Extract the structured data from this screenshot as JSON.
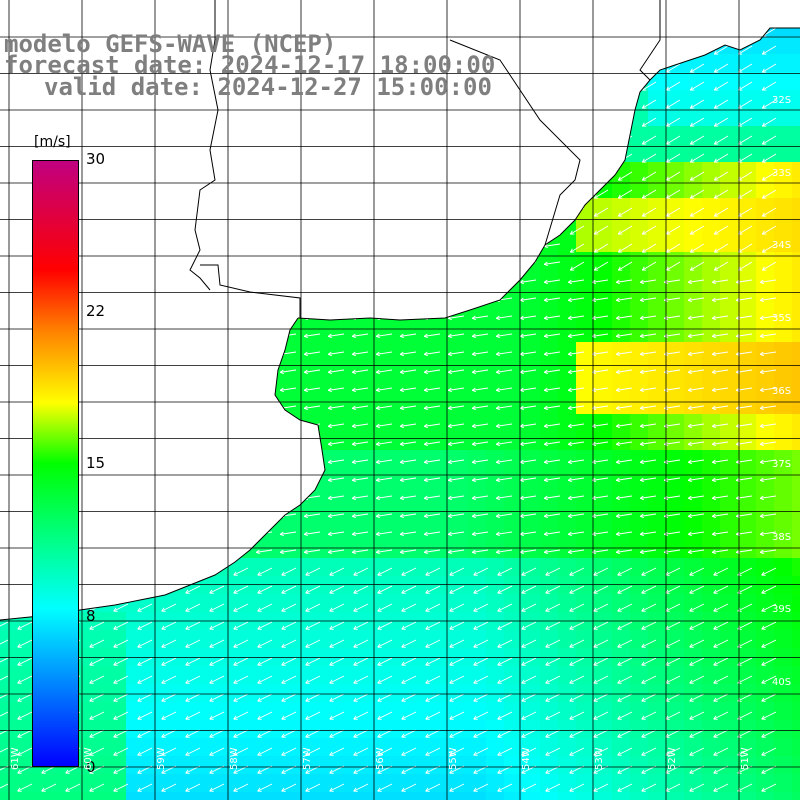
{
  "title": {
    "line1": "modelo GEFS-WAVE (NCEP)",
    "line2": "forecast date: 2024-12-17 18:00:00",
    "line3": "valid date: 2024-12-27 15:00:00"
  },
  "colorbar": {
    "unit": "[m/s]",
    "ticks": [
      "30",
      "22",
      "15",
      "8",
      "0"
    ],
    "tick_values": [
      30,
      22,
      15,
      8,
      0
    ],
    "colors": [
      "#0000ff",
      "#00ffff",
      "#00ff00",
      "#ffff00",
      "#ff8000",
      "#ff0000",
      "#c00080"
    ]
  },
  "lat_labels": [
    "32S",
    "33S",
    "34S",
    "35S",
    "36S",
    "37S",
    "38S",
    "39S",
    "40S"
  ],
  "lon_labels": [
    "61W",
    "60W",
    "59W",
    "58W",
    "57W",
    "56W",
    "55W",
    "54W",
    "53W",
    "52W",
    "51W"
  ],
  "colors": {
    "land": "#ffffff",
    "grid": "#000000",
    "coast": "#000000",
    "arrows": "#ffffff",
    "title": "#7f7f7f"
  }
}
